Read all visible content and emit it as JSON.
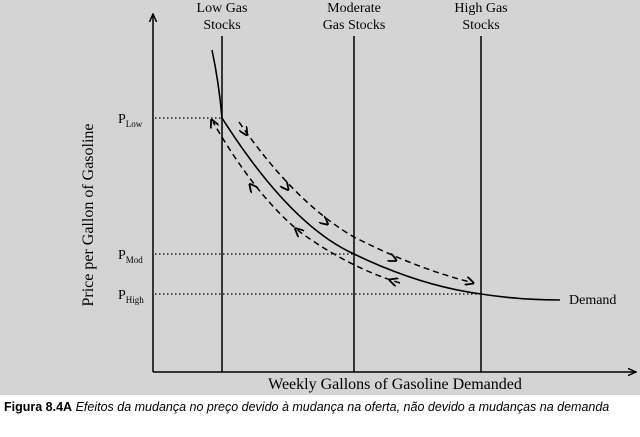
{
  "diagram": {
    "x_axis_label": "Weekly Gallons of Gasoline Demanded",
    "y_axis_label": "Price per Gallon of Gasoline",
    "supply_lines": [
      {
        "line1": "Low Gas",
        "line2": "Stocks"
      },
      {
        "line1": "Moderate",
        "line2": "Gas Stocks"
      },
      {
        "line1": "High Gas",
        "line2": "Stocks"
      }
    ],
    "price_levels": [
      {
        "base": "P",
        "sub": "Low"
      },
      {
        "base": "P",
        "sub": "Mod"
      },
      {
        "base": "P",
        "sub": "High"
      }
    ],
    "demand_label": "Demand"
  },
  "caption": {
    "label": "Figura 8.4A",
    "text": "Efeitos da mudança no preço devido à mudança na oferta, não devido a mudanças na demanda"
  }
}
